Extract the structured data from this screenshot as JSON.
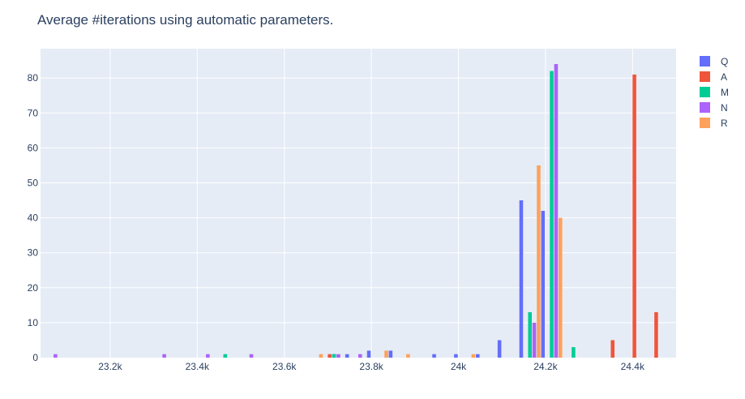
{
  "chart_data": {
    "type": "bar",
    "title": "Average #iterations using automatic parameters.",
    "xlabel": "",
    "ylabel": "",
    "x_ticks": [
      23200,
      23400,
      23600,
      23800,
      24000,
      24200,
      24400
    ],
    "x_tick_labels": [
      "23.2k",
      "23.4k",
      "23.6k",
      "23.8k",
      "24k",
      "24.2k",
      "24.4k"
    ],
    "y_ticks": [
      0,
      10,
      20,
      30,
      40,
      50,
      60,
      70,
      80
    ],
    "y_tick_labels": [
      "0",
      "10",
      "20",
      "30",
      "40",
      "50",
      "60",
      "70",
      "80"
    ],
    "xlim": [
      23040,
      24500
    ],
    "ylim": [
      0,
      88.4
    ],
    "grid": true,
    "legend_position": "top-right",
    "bin_width": 50,
    "series": [
      {
        "name": "Q",
        "color": "#636efa",
        "points": [
          [
            23710,
            1
          ],
          [
            23740,
            1
          ],
          [
            23790,
            2
          ],
          [
            23840,
            2
          ],
          [
            23940,
            1
          ],
          [
            23990,
            1
          ],
          [
            24040,
            1
          ],
          [
            24090,
            5
          ],
          [
            24140,
            45
          ],
          [
            24190,
            42
          ]
        ]
      },
      {
        "name": "A",
        "color": "#ef553b",
        "points": [
          [
            23690,
            1
          ],
          [
            24340,
            5
          ],
          [
            24390,
            81
          ],
          [
            24440,
            13
          ]
        ]
      },
      {
        "name": "M",
        "color": "#00cc96",
        "points": [
          [
            23440,
            1
          ],
          [
            23690,
            1
          ],
          [
            24140,
            13
          ],
          [
            24190,
            82
          ],
          [
            24240,
            3
          ]
        ]
      },
      {
        "name": "N",
        "color": "#ab63fa",
        "points": [
          [
            23040,
            1
          ],
          [
            23290,
            1
          ],
          [
            23390,
            1
          ],
          [
            23490,
            1
          ],
          [
            23690,
            1
          ],
          [
            23740,
            1
          ],
          [
            24140,
            10
          ],
          [
            24190,
            84
          ]
        ]
      },
      {
        "name": "R",
        "color": "#fea15a",
        "points": [
          [
            23640,
            1
          ],
          [
            23790,
            2
          ],
          [
            23840,
            1
          ],
          [
            23990,
            1
          ],
          [
            24140,
            55
          ],
          [
            24190,
            40
          ]
        ]
      }
    ]
  }
}
